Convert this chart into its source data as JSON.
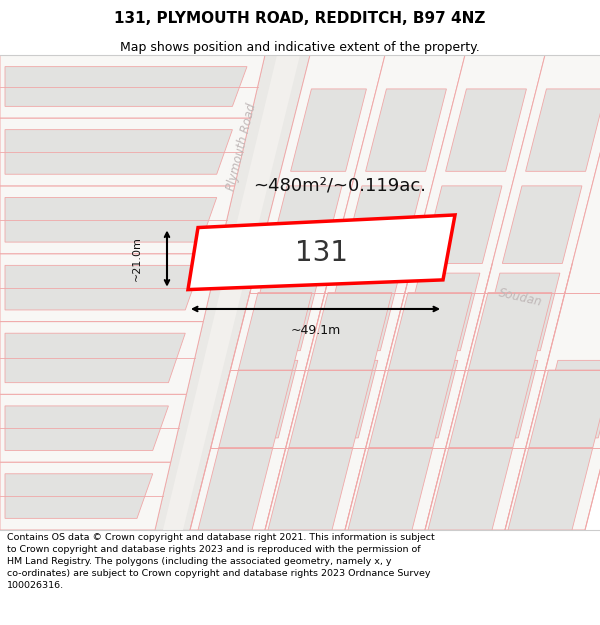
{
  "title": "131, PLYMOUTH ROAD, REDDITCH, B97 4NZ",
  "subtitle": "Map shows position and indicative extent of the property.",
  "footer_lines": [
    "Contains OS data © Crown copyright and database right 2021. This information is subject",
    "to Crown copyright and database rights 2023 and is reproduced with the permission of",
    "HM Land Registry. The polygons (including the associated geometry, namely x, y",
    "co-ordinates) are subject to Crown copyright and database rights 2023 Ordnance Survey",
    "100026316."
  ],
  "area_text": "~480m²/~0.119ac.",
  "label_131": "131",
  "dim_width": "~49.1m",
  "dim_height": "~21.0m",
  "road_label": "Plymouth Road",
  "soudan_label": "Soudan",
  "map_bg": "#f8f7f5",
  "block_fill": "#e2e2e0",
  "block_edge": "#f0b0b0",
  "road_fill": "#f0eeec",
  "road_edge": "#d8c8c8",
  "target_fill": "#ffffff",
  "target_edge": "#ff0000",
  "grid_line_color": "#f0a8a8",
  "road_label_color": "#c0b8b8",
  "soudan_label_color": "#c0b8b8",
  "dim_color": "#111111",
  "title_fontsize": 11,
  "subtitle_fontsize": 9,
  "footer_fontsize": 6.8,
  "area_fontsize": 13,
  "label_fontsize": 20,
  "dim_fontsize": 9
}
